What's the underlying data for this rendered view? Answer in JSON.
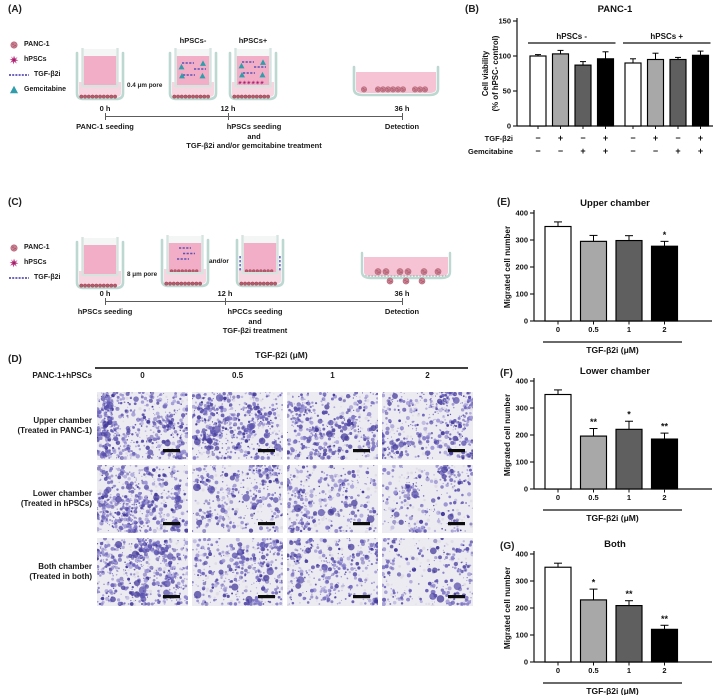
{
  "panelA": {
    "label": "(A)",
    "legend": [
      {
        "icon": "panc1-cell-icon",
        "label": "PANC-1"
      },
      {
        "icon": "hpsc-star-icon",
        "label": "hPSCs"
      },
      {
        "icon": "tgfb2i-dash-icon",
        "label": "TGF-β2i"
      },
      {
        "icon": "gemcitabine-triangle-icon",
        "label": "Gemcitabine"
      }
    ],
    "pore_label": "0.4 μm pore",
    "well_labels": {
      "minus": "hPSCs-",
      "plus": "hPSCs+"
    },
    "timepoints": [
      "0 h",
      "12 h",
      "36 h"
    ],
    "captions": {
      "t0": "PANC-1 seeding",
      "t12_lines": [
        "hPSCs seeding",
        "and",
        "TGF-β2i and/or gemcitabine treatment"
      ],
      "t36": "Detection"
    }
  },
  "panelC": {
    "label": "(C)",
    "legend": [
      {
        "icon": "panc1-cell-icon",
        "label": "PANC-1"
      },
      {
        "icon": "hpsc-star-icon",
        "label": "hPSCs"
      },
      {
        "icon": "tgfb2i-dash-icon",
        "label": "TGF-β2i"
      }
    ],
    "pore_label": "8 μm pore",
    "andor": "and/or",
    "timepoints": [
      "0 h",
      "12 h",
      "36 h"
    ],
    "captions": {
      "t0": "hPSCs seeding",
      "t12_lines": [
        "hPCCs seeding",
        "and",
        "TGF-β2i treatment"
      ],
      "t36": "Detection"
    }
  },
  "panelD": {
    "label": "(D)",
    "header": "TGF-β2i (μM)",
    "row_header": "PANC-1+hPSCs",
    "columns": [
      "0",
      "0.5",
      "1",
      "2"
    ],
    "rows": [
      {
        "lines": [
          "Upper chamber",
          "(Treated in PANC-1)"
        ],
        "densities": [
          640,
          610,
          450,
          490
        ]
      },
      {
        "lines": [
          "Lower chamber",
          "(Treated in hPSCs)"
        ],
        "densities": [
          610,
          390,
          340,
          310
        ]
      },
      {
        "lines": [
          "Both chamber",
          "(Treated in both)"
        ],
        "densities": [
          640,
          450,
          380,
          270
        ]
      }
    ],
    "stain_colors": [
      "#453c9b",
      "#5a51ad",
      "#6e66bd",
      "#847cc9",
      "#9d97d6"
    ],
    "tile_bg": "#edebf2"
  },
  "chart_data": [
    {
      "id": "B",
      "type": "bar",
      "panel_label": "(B)",
      "title": "PANC-1",
      "ylabel_lines": [
        "Cell viability",
        "(% of hPSC- control)"
      ],
      "ylim": [
        0,
        150
      ],
      "yticks": [
        0,
        50,
        100,
        150
      ],
      "groups": [
        {
          "label": "hPSCs -"
        },
        {
          "label": "hPSCs +"
        }
      ],
      "values": [
        100,
        103,
        87,
        96,
        90,
        95,
        95,
        101
      ],
      "errors": [
        2,
        5,
        5,
        10,
        6,
        9,
        3,
        6
      ],
      "bar_colors": [
        "#ffffff",
        "#a8a8a8",
        "#5f5f5f",
        "#000000",
        "#ffffff",
        "#a8a8a8",
        "#5f5f5f",
        "#000000"
      ],
      "sign_rows": [
        {
          "label": "TGF-β2i",
          "signs": [
            "−",
            "+",
            "−",
            "+",
            "−",
            "+",
            "−",
            "+"
          ]
        },
        {
          "label": "Gemcitabine",
          "signs": [
            "−",
            "−",
            "+",
            "+",
            "−",
            "−",
            "+",
            "+"
          ]
        }
      ]
    },
    {
      "id": "E",
      "type": "bar",
      "panel_label": "(E)",
      "title": "Upper chamber",
      "ylabel": "Migrated cell number",
      "ylim": [
        0,
        400
      ],
      "yticks": [
        0,
        100,
        200,
        300,
        400
      ],
      "categories": [
        "0",
        "0.5",
        "1",
        "2"
      ],
      "values": [
        350,
        295,
        298,
        277
      ],
      "errors": [
        17,
        22,
        18,
        18
      ],
      "sig": [
        "",
        "",
        "",
        "*"
      ],
      "bar_colors": [
        "#ffffff",
        "#a8a8a8",
        "#5f5f5f",
        "#000000"
      ],
      "xlabel": "TGF-β2i (μM)"
    },
    {
      "id": "F",
      "type": "bar",
      "panel_label": "(F)",
      "title": "Lower chamber",
      "ylabel": "Migrated cell number",
      "ylim": [
        0,
        400
      ],
      "yticks": [
        0,
        100,
        200,
        300,
        400
      ],
      "categories": [
        "0",
        "0.5",
        "1",
        "2"
      ],
      "values": [
        350,
        196,
        221,
        185
      ],
      "errors": [
        17,
        28,
        30,
        22
      ],
      "sig": [
        "",
        "**",
        "*",
        "**"
      ],
      "bar_colors": [
        "#ffffff",
        "#a8a8a8",
        "#5f5f5f",
        "#000000"
      ],
      "xlabel": "TGF-β2i (μM)"
    },
    {
      "id": "G",
      "type": "bar",
      "panel_label": "(G)",
      "title": "Both",
      "ylabel": "Migrated cell number",
      "ylim": [
        0,
        400
      ],
      "yticks": [
        0,
        100,
        200,
        300,
        400
      ],
      "categories": [
        "0",
        "0.5",
        "1",
        "2"
      ],
      "values": [
        351,
        230,
        209,
        121
      ],
      "errors": [
        15,
        40,
        18,
        15
      ],
      "sig": [
        "",
        "*",
        "**",
        "**"
      ],
      "bar_colors": [
        "#ffffff",
        "#a8a8a8",
        "#5f5f5f",
        "#000000"
      ],
      "xlabel": "TGF-β2i (μM)"
    }
  ]
}
